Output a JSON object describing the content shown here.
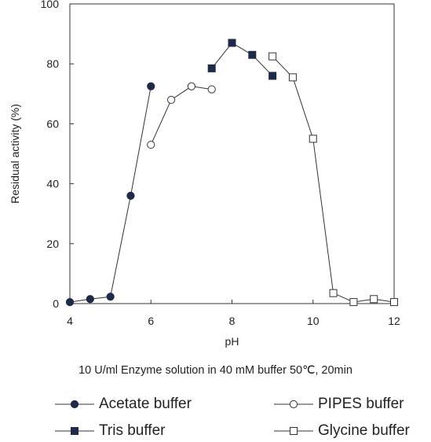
{
  "chart_data": {
    "type": "line",
    "title": "",
    "xlabel": "pH",
    "ylabel": "Residual activity (%)",
    "xlim": [
      4,
      12
    ],
    "ylim": [
      0,
      100
    ],
    "x_ticks": [
      4,
      6,
      8,
      10,
      12
    ],
    "y_ticks": [
      0,
      20,
      40,
      60,
      80,
      100
    ],
    "grid": false,
    "legend_position": "bottom",
    "series": [
      {
        "name": "Acetate buffer",
        "marker": "circle-filled",
        "x": [
          4.0,
          4.5,
          5.0,
          5.5,
          6.0
        ],
        "y": [
          0.5,
          1.5,
          2.3,
          36,
          72.5
        ]
      },
      {
        "name": "PIPES buffer",
        "marker": "circle-open",
        "x": [
          6.0,
          6.5,
          7.0,
          7.5
        ],
        "y": [
          53,
          68,
          72.5,
          71.5
        ]
      },
      {
        "name": "Tris buffer",
        "marker": "square-filled",
        "x": [
          7.5,
          8.0,
          8.5,
          9.0
        ],
        "y": [
          78.5,
          87,
          83,
          76
        ]
      },
      {
        "name": "Glycine buffer",
        "marker": "square-open",
        "x": [
          9.0,
          9.5,
          10.0,
          10.5,
          11.0,
          11.5,
          12.0
        ],
        "y": [
          82.5,
          75.5,
          55,
          3.5,
          0.5,
          1.5,
          0.5
        ]
      }
    ]
  },
  "caption": "10 U/ml Enzyme solution in 40 mM buffer 50℃, 20min",
  "legend": [
    {
      "label": "Acetate buffer",
      "marker": "circle-filled"
    },
    {
      "label": "PIPES buffer",
      "marker": "circle-open"
    },
    {
      "label": "Tris buffer",
      "marker": "square-filled"
    },
    {
      "label": "Glycine buffer",
      "marker": "square-open"
    }
  ],
  "colors": {
    "ink": "#222222",
    "marker_fill": "#1e2a4a",
    "background": "#ffffff"
  }
}
